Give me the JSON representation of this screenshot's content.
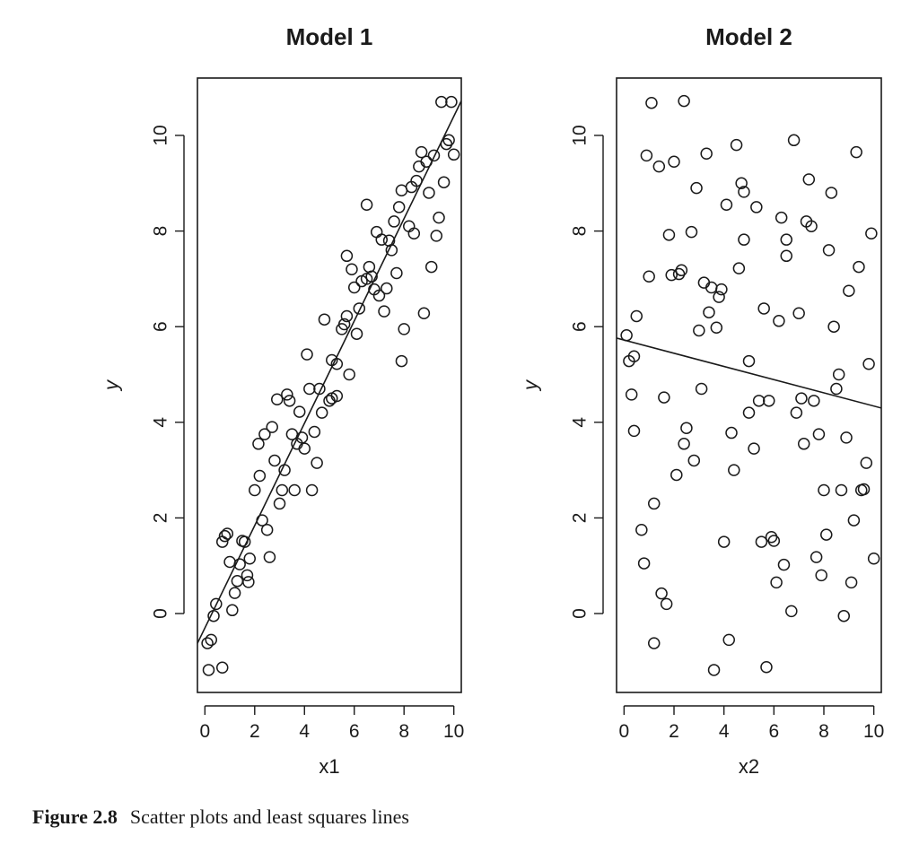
{
  "figure": {
    "caption_label": "Figure 2.8",
    "caption_text": "Scatter plots and least squares lines"
  },
  "chart_data": [
    {
      "type": "scatter",
      "title": "Model 1",
      "xlabel": "x1",
      "ylabel": "y",
      "xlim": [
        -0.3,
        10.3
      ],
      "ylim": [
        -1.65,
        11.2
      ],
      "xticks": [
        0,
        2,
        4,
        6,
        8,
        10
      ],
      "yticks": [
        0,
        2,
        4,
        6,
        8,
        10
      ],
      "grid": false,
      "marker": "open-circle",
      "fit_line": {
        "intercept": -0.3,
        "slope": 1.07
      },
      "points": [
        [
          0.1,
          -0.62
        ],
        [
          0.25,
          -0.55
        ],
        [
          0.15,
          -1.18
        ],
        [
          0.7,
          -1.13
        ],
        [
          0.35,
          -0.05
        ],
        [
          0.45,
          0.2
        ],
        [
          1.1,
          0.07
        ],
        [
          1.2,
          0.43
        ],
        [
          1.3,
          0.68
        ],
        [
          1.4,
          1.03
        ],
        [
          1.7,
          0.8
        ],
        [
          1.75,
          0.66
        ],
        [
          1.8,
          1.15
        ],
        [
          1.0,
          1.08
        ],
        [
          0.8,
          1.62
        ],
        [
          0.9,
          1.67
        ],
        [
          0.7,
          1.5
        ],
        [
          1.5,
          1.52
        ],
        [
          1.6,
          1.5
        ],
        [
          2.3,
          1.95
        ],
        [
          2.5,
          1.75
        ],
        [
          2.6,
          1.18
        ],
        [
          2.0,
          2.58
        ],
        [
          2.2,
          2.88
        ],
        [
          3.0,
          2.3
        ],
        [
          3.1,
          2.58
        ],
        [
          3.2,
          3.0
        ],
        [
          3.6,
          2.58
        ],
        [
          4.3,
          2.58
        ],
        [
          2.8,
          3.2
        ],
        [
          2.4,
          3.75
        ],
        [
          2.15,
          3.55
        ],
        [
          2.7,
          3.9
        ],
        [
          3.5,
          3.75
        ],
        [
          3.7,
          3.55
        ],
        [
          3.9,
          3.68
        ],
        [
          4.0,
          3.45
        ],
        [
          4.4,
          3.8
        ],
        [
          4.5,
          3.15
        ],
        [
          2.9,
          4.48
        ],
        [
          3.3,
          4.58
        ],
        [
          3.4,
          4.45
        ],
        [
          3.8,
          4.22
        ],
        [
          4.2,
          4.7
        ],
        [
          4.6,
          4.7
        ],
        [
          4.7,
          4.2
        ],
        [
          5.0,
          4.45
        ],
        [
          5.1,
          4.5
        ],
        [
          5.3,
          4.55
        ],
        [
          4.1,
          5.42
        ],
        [
          5.1,
          5.3
        ],
        [
          5.3,
          5.22
        ],
        [
          5.5,
          5.95
        ],
        [
          5.6,
          6.05
        ],
        [
          5.8,
          5.0
        ],
        [
          6.1,
          5.85
        ],
        [
          4.8,
          6.15
        ],
        [
          5.7,
          6.22
        ],
        [
          6.2,
          6.38
        ],
        [
          6.0,
          6.82
        ],
        [
          6.3,
          6.95
        ],
        [
          6.5,
          7.0
        ],
        [
          6.7,
          7.05
        ],
        [
          6.6,
          7.25
        ],
        [
          6.8,
          6.78
        ],
        [
          7.0,
          6.65
        ],
        [
          7.2,
          6.32
        ],
        [
          7.3,
          6.8
        ],
        [
          5.7,
          7.48
        ],
        [
          5.9,
          7.2
        ],
        [
          6.9,
          7.98
        ],
        [
          7.1,
          7.82
        ],
        [
          7.4,
          7.8
        ],
        [
          7.5,
          7.6
        ],
        [
          7.7,
          7.12
        ],
        [
          7.6,
          8.2
        ],
        [
          7.8,
          8.5
        ],
        [
          8.2,
          8.1
        ],
        [
          8.4,
          7.95
        ],
        [
          8.0,
          5.95
        ],
        [
          7.9,
          5.28
        ],
        [
          8.8,
          6.28
        ],
        [
          9.1,
          7.25
        ],
        [
          9.3,
          7.9
        ],
        [
          9.4,
          8.28
        ],
        [
          9.0,
          8.8
        ],
        [
          8.3,
          8.92
        ],
        [
          8.5,
          9.05
        ],
        [
          8.6,
          9.35
        ],
        [
          8.9,
          9.45
        ],
        [
          8.7,
          9.65
        ],
        [
          9.2,
          9.58
        ],
        [
          9.6,
          9.02
        ],
        [
          9.7,
          9.82
        ],
        [
          9.8,
          9.9
        ],
        [
          10.0,
          9.6
        ],
        [
          9.5,
          10.7
        ],
        [
          9.9,
          10.7
        ],
        [
          6.5,
          8.55
        ],
        [
          7.9,
          8.85
        ]
      ]
    },
    {
      "type": "scatter",
      "title": "Model 2",
      "xlabel": "x2",
      "ylabel": "y",
      "xlim": [
        -0.3,
        10.3
      ],
      "ylim": [
        -1.65,
        11.2
      ],
      "xticks": [
        0,
        2,
        4,
        6,
        8,
        10
      ],
      "yticks": [
        0,
        2,
        4,
        6,
        8,
        10
      ],
      "grid": false,
      "marker": "open-circle",
      "fit_line": {
        "intercept": 5.72,
        "slope": -0.138
      },
      "points": [
        [
          0.1,
          5.82
        ],
        [
          0.2,
          5.28
        ],
        [
          0.4,
          5.38
        ],
        [
          0.3,
          4.58
        ],
        [
          0.4,
          3.82
        ],
        [
          0.5,
          6.22
        ],
        [
          0.9,
          9.58
        ],
        [
          1.0,
          7.05
        ],
        [
          1.1,
          10.68
        ],
        [
          1.4,
          9.35
        ],
        [
          1.8,
          7.92
        ],
        [
          1.9,
          7.08
        ],
        [
          2.0,
          9.45
        ],
        [
          2.2,
          7.1
        ],
        [
          2.3,
          7.18
        ],
        [
          2.4,
          10.72
        ],
        [
          2.7,
          7.98
        ],
        [
          2.9,
          8.9
        ],
        [
          3.3,
          9.62
        ],
        [
          3.2,
          6.92
        ],
        [
          3.4,
          6.3
        ],
        [
          3.5,
          6.82
        ],
        [
          3.7,
          5.98
        ],
        [
          3.0,
          5.92
        ],
        [
          3.8,
          6.62
        ],
        [
          3.9,
          6.78
        ],
        [
          3.1,
          4.7
        ],
        [
          1.6,
          4.52
        ],
        [
          4.1,
          8.55
        ],
        [
          4.5,
          9.8
        ],
        [
          4.7,
          9.0
        ],
        [
          4.8,
          8.82
        ],
        [
          4.8,
          7.82
        ],
        [
          4.6,
          7.22
        ],
        [
          5.3,
          8.5
        ],
        [
          5.0,
          5.28
        ],
        [
          5.4,
          4.45
        ],
        [
          5.6,
          6.38
        ],
        [
          5.8,
          4.45
        ],
        [
          6.2,
          6.12
        ],
        [
          6.3,
          8.28
        ],
        [
          6.5,
          7.82
        ],
        [
          6.5,
          7.48
        ],
        [
          6.8,
          9.9
        ],
        [
          7.0,
          6.28
        ],
        [
          7.3,
          8.2
        ],
        [
          7.5,
          8.1
        ],
        [
          7.4,
          9.08
        ],
        [
          7.6,
          4.45
        ],
        [
          7.1,
          4.5
        ],
        [
          6.9,
          4.2
        ],
        [
          8.2,
          7.6
        ],
        [
          8.3,
          8.8
        ],
        [
          8.4,
          6.0
        ],
        [
          8.5,
          4.7
        ],
        [
          8.6,
          5.0
        ],
        [
          9.0,
          6.75
        ],
        [
          9.3,
          9.65
        ],
        [
          9.4,
          7.25
        ],
        [
          9.8,
          5.22
        ],
        [
          9.9,
          7.95
        ],
        [
          5.0,
          4.2
        ],
        [
          5.2,
          3.45
        ],
        [
          4.3,
          3.78
        ],
        [
          7.2,
          3.55
        ],
        [
          7.8,
          3.75
        ],
        [
          8.9,
          3.68
        ],
        [
          9.7,
          3.15
        ],
        [
          2.5,
          3.88
        ],
        [
          2.4,
          3.55
        ],
        [
          2.8,
          3.2
        ],
        [
          2.1,
          2.9
        ],
        [
          4.4,
          3.0
        ],
        [
          8.0,
          2.58
        ],
        [
          8.7,
          2.58
        ],
        [
          9.5,
          2.58
        ],
        [
          9.6,
          2.6
        ],
        [
          9.2,
          1.95
        ],
        [
          1.2,
          2.3
        ],
        [
          0.7,
          1.75
        ],
        [
          0.8,
          1.05
        ],
        [
          1.5,
          0.42
        ],
        [
          1.7,
          0.2
        ],
        [
          4.0,
          1.5
        ],
        [
          5.5,
          1.5
        ],
        [
          5.9,
          1.6
        ],
        [
          6.0,
          1.52
        ],
        [
          6.4,
          1.02
        ],
        [
          6.1,
          0.65
        ],
        [
          6.7,
          0.05
        ],
        [
          7.7,
          1.18
        ],
        [
          7.9,
          0.8
        ],
        [
          8.1,
          1.65
        ],
        [
          8.8,
          -0.05
        ],
        [
          9.1,
          0.65
        ],
        [
          10.0,
          1.15
        ],
        [
          1.2,
          -0.62
        ],
        [
          4.2,
          -0.55
        ],
        [
          3.6,
          -1.18
        ],
        [
          5.7,
          -1.12
        ]
      ]
    }
  ]
}
